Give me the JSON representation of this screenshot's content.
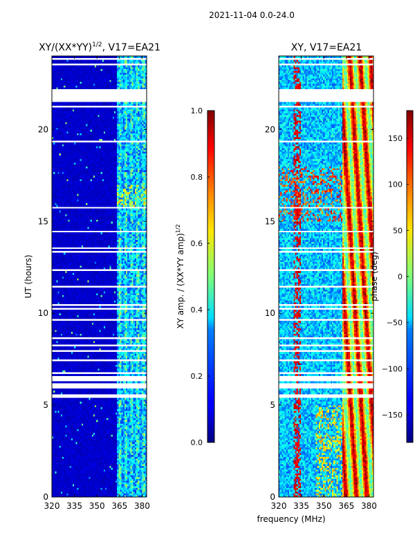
{
  "suptitle": "2021-11-04 0.0-24.0",
  "chart_data": [
    {
      "type": "heatmap",
      "title": "XY/(XX*YY)^(1/2), V17=EA21",
      "title_main": "XY/(XX*YY)",
      "title_sup": "1/2",
      "title_tail": ", V17=EA21",
      "xlabel": "",
      "ylabel": "UT (hours)",
      "xlim": [
        320,
        383
      ],
      "ylim": [
        0,
        24
      ],
      "xticks": [
        320,
        335,
        350,
        365,
        380
      ],
      "yticks": [
        0,
        5,
        10,
        15,
        20
      ],
      "colorbar": {
        "label": "XY amp. / (XX*YY amp)^(1/2)",
        "label_main": "XY amp. / (XX*YY amp)",
        "label_sup": "1/2",
        "range": [
          0.0,
          1.0
        ],
        "ticks": [
          "0.0",
          "0.2",
          "0.4",
          "0.6",
          "0.8",
          "1.0"
        ],
        "tick_values": [
          0.0,
          0.2,
          0.4,
          0.6,
          0.8,
          1.0
        ],
        "colormap": "jet"
      }
    },
    {
      "type": "heatmap",
      "title": "XY, V17=EA21",
      "xlabel": "frequency (MHz)",
      "ylabel": "",
      "xlim": [
        320,
        383
      ],
      "ylim": [
        0,
        24
      ],
      "xticks": [
        320,
        335,
        350,
        365,
        380
      ],
      "yticks": [
        0,
        5,
        10,
        15,
        20
      ],
      "colorbar": {
        "label": "phase (deg)",
        "range": [
          -180,
          180
        ],
        "ticks": [
          "−150",
          "−100",
          "−50",
          "0",
          "50",
          "100",
          "150"
        ],
        "tick_values": [
          -150,
          -100,
          -50,
          0,
          50,
          100,
          150
        ],
        "colormap": "jet"
      }
    }
  ]
}
